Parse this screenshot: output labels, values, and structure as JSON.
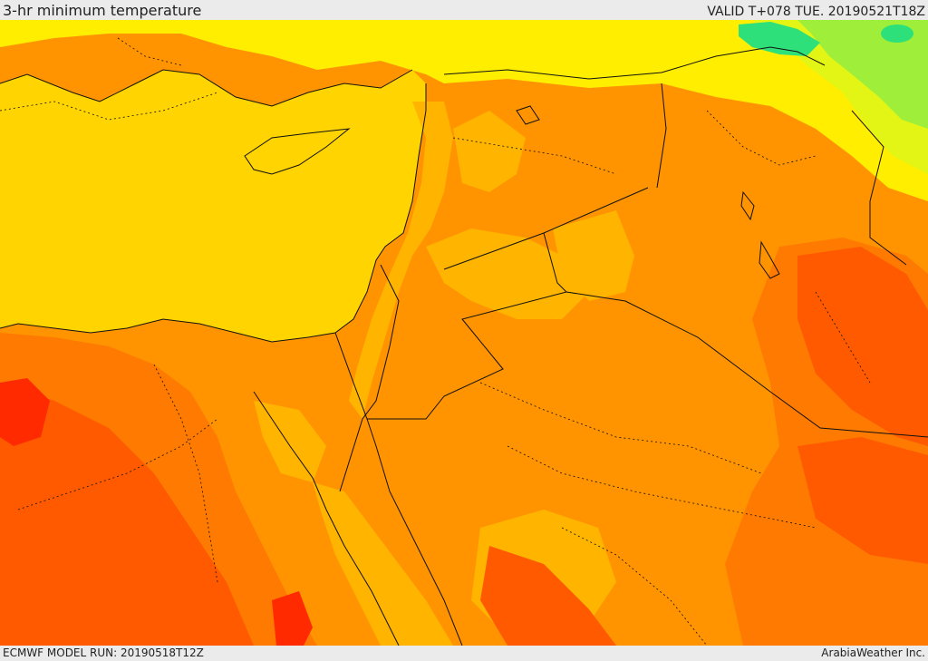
{
  "header": {
    "title": "3-hr minimum temperature",
    "valid": "VALID T+078 TUE. 20190521T18Z"
  },
  "footer": {
    "model_run": "ECMWF MODEL RUN: 20190518T12Z",
    "credit": "ArabiaWeather Inc."
  },
  "map": {
    "variable": "3-hr minimum temperature",
    "palette": {
      "sea": "#ffd400",
      "cool_green": "#2de07a",
      "light_green": "#9fef3a",
      "yellow_green": "#e3f514",
      "yellow": "#ffee00",
      "gold": "#ffd200",
      "amber": "#ffb400",
      "orange": "#ff9400",
      "dark_orange": "#ff7a00",
      "red_orange": "#ff5a00",
      "red": "#ff2a00",
      "border_line": "#111111"
    }
  }
}
